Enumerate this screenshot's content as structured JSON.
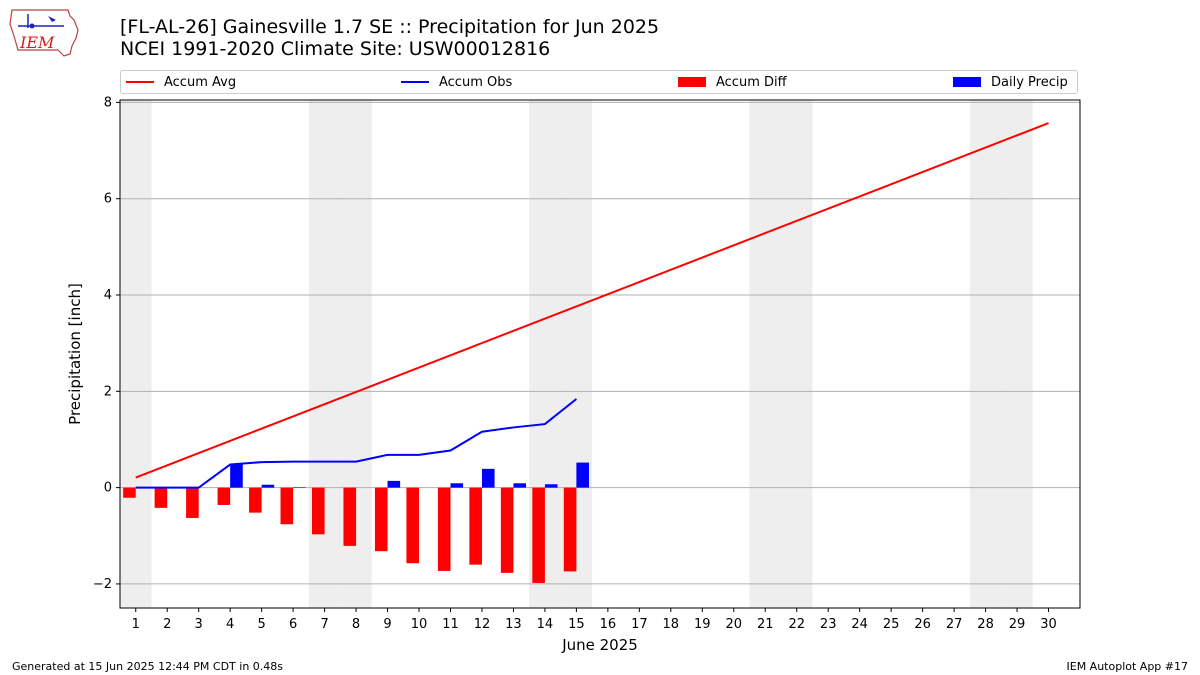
{
  "title_line1": "[FL-AL-26] Gainesville 1.7 SE :: Precipitation for Jun 2025",
  "title_line2": "NCEI 1991-2020 Climate Site: USW00012816",
  "logo_text": "IEM",
  "footer_left": "Generated at 15 Jun 2025 12:44 PM CDT in 0.48s",
  "footer_right": "IEM Autoplot App #17",
  "colors": {
    "avg": "#ff0000",
    "obs": "#0000ff",
    "diff": "#ff0000",
    "daily": "#0000ff",
    "weekend": "#eeeeee",
    "grid": "#b0b0b0"
  },
  "chart_data": {
    "type": "bar",
    "xlabel": "June 2025",
    "ylabel": "Precipitation [inch]",
    "xlim": [
      0.5,
      31.0
    ],
    "ylim": [
      -2.5,
      8.05
    ],
    "yticks": [
      -2,
      0,
      2,
      4,
      6,
      8
    ],
    "ytick_labels": [
      "−2",
      "0",
      "2",
      "4",
      "6",
      "8"
    ],
    "xticks": [
      1,
      2,
      3,
      4,
      5,
      6,
      7,
      8,
      9,
      10,
      11,
      12,
      13,
      14,
      15,
      16,
      17,
      18,
      19,
      20,
      21,
      22,
      23,
      24,
      25,
      26,
      27,
      28,
      29,
      30
    ],
    "grid": "y",
    "legend_placement": "top",
    "weekend_days": [
      1,
      7,
      8,
      14,
      15,
      21,
      22,
      28,
      29
    ],
    "series": [
      {
        "name": "Accum Avg",
        "kind": "line",
        "x": [
          1,
          30
        ],
        "values": [
          0.21,
          7.57
        ]
      },
      {
        "name": "Accum Obs",
        "kind": "line",
        "x": [
          1,
          2,
          3,
          4,
          5,
          6,
          7,
          8,
          9,
          10,
          11,
          12,
          13,
          14,
          15
        ],
        "values": [
          0.0,
          0.0,
          0.0,
          0.48,
          0.53,
          0.54,
          0.54,
          0.54,
          0.68,
          0.68,
          0.77,
          1.16,
          1.25,
          1.32,
          1.84
        ]
      },
      {
        "name": "Accum Diff",
        "kind": "bar",
        "x": [
          1,
          2,
          3,
          4,
          5,
          6,
          7,
          8,
          9,
          10,
          11,
          12,
          13,
          14,
          15
        ],
        "values": [
          -0.21,
          -0.42,
          -0.63,
          -0.36,
          -0.52,
          -0.76,
          -0.97,
          -1.21,
          -1.32,
          -1.57,
          -1.73,
          -1.6,
          -1.77,
          -1.98,
          -1.74
        ]
      },
      {
        "name": "Daily Precip",
        "kind": "bar",
        "x": [
          1,
          2,
          3,
          4,
          5,
          6,
          7,
          8,
          9,
          10,
          11,
          12,
          13,
          14,
          15
        ],
        "values": [
          0.0,
          0.0,
          0.0,
          0.48,
          0.06,
          0.01,
          0.0,
          0.0,
          0.14,
          0.0,
          0.09,
          0.39,
          0.09,
          0.07,
          0.52
        ]
      }
    ]
  }
}
